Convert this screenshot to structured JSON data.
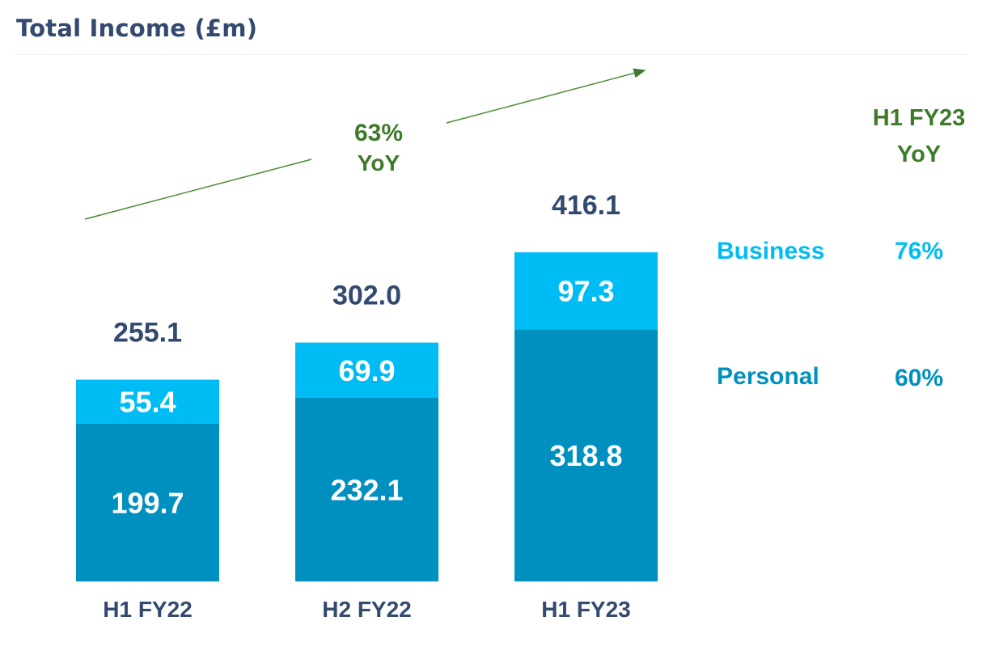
{
  "chart_data": {
    "type": "bar",
    "stacked": true,
    "title": "Total Income (£m)",
    "categories": [
      "H1 FY22",
      "H2 FY22",
      "H1 FY23"
    ],
    "series": [
      {
        "name": "Personal",
        "values": [
          199.7,
          232.1,
          318.8
        ],
        "color": "#0090bf"
      },
      {
        "name": "Business",
        "values": [
          55.4,
          69.9,
          97.3
        ],
        "color": "#00bcf5"
      }
    ],
    "totals": [
      "255.1",
      "302.0",
      "416.1"
    ],
    "series_labels": [
      [
        "199.7",
        "232.1",
        "318.8"
      ],
      [
        "55.4",
        "69.9",
        "97.3"
      ]
    ],
    "grid": false,
    "annotation": {
      "value": "63%",
      "label": "YoY",
      "color": "#3e7a2a"
    },
    "side_panel": {
      "header": [
        "H1 FY23",
        "YoY"
      ],
      "rows": [
        {
          "name": "Business",
          "value": "76%",
          "color": "#00bcf5"
        },
        {
          "name": "Personal",
          "value": "60%",
          "color": "#0090bf"
        }
      ]
    },
    "text_color": "#34496f"
  }
}
